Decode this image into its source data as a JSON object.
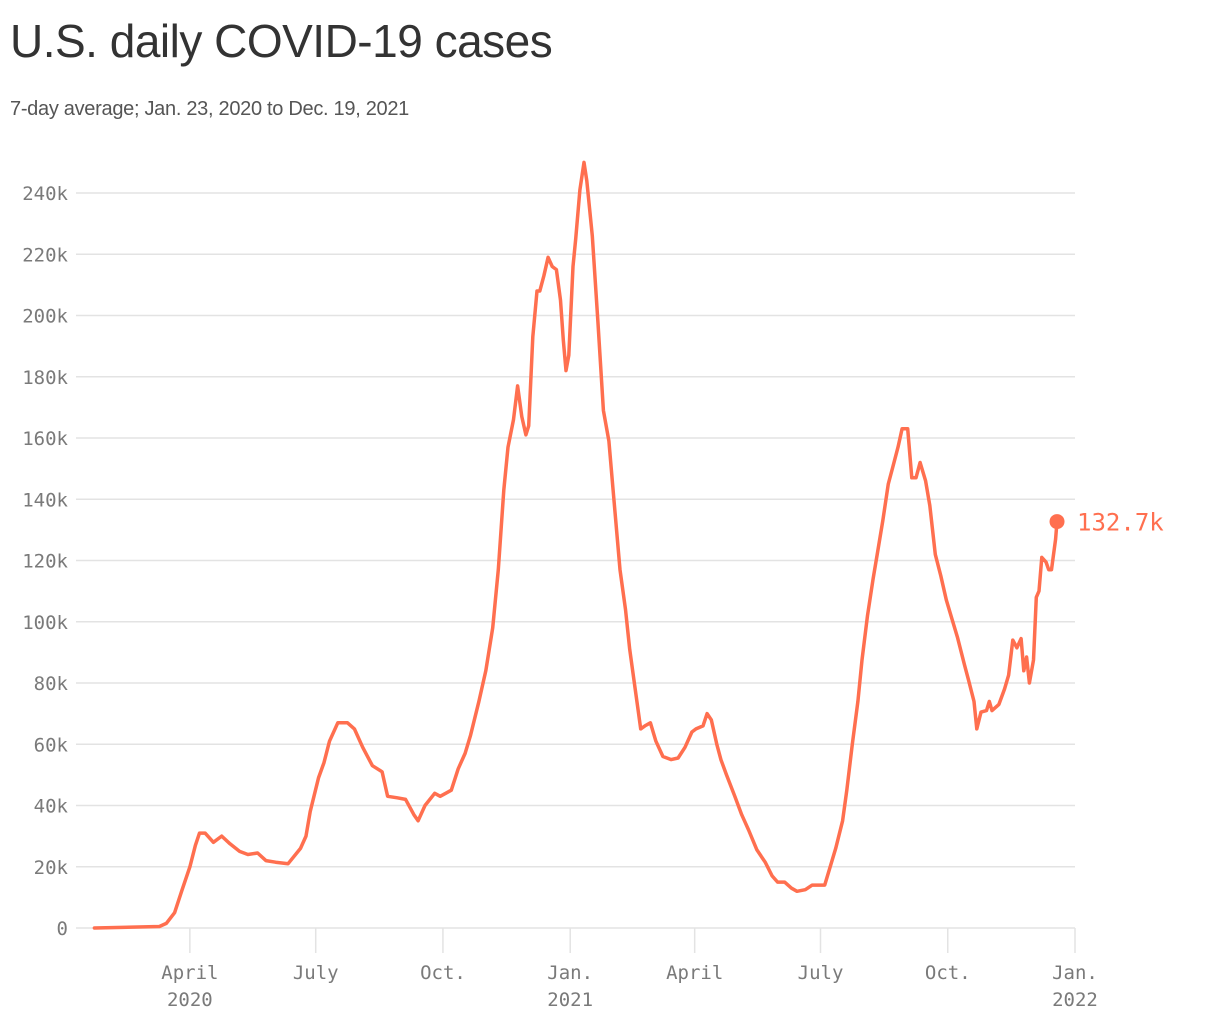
{
  "header": {
    "title": "U.S. daily COVID-19 cases",
    "subtitle": "7-day average; Jan. 23, 2020 to Dec. 19, 2021"
  },
  "colors": {
    "line": "#FF6F4F",
    "grid": "#e3e3e3",
    "axis_text": "#7a7a7a",
    "title": "#333333",
    "subtitle": "#555555"
  },
  "end_label": "132.7k",
  "chart_data": {
    "type": "line",
    "title": "U.S. daily COVID-19 cases",
    "subtitle": "7-day average; Jan. 23, 2020 to Dec. 19, 2021",
    "xlabel": "",
    "ylabel": "",
    "ylim": [
      0,
      240000
    ],
    "grid": true,
    "legend": "none",
    "yticks": [
      {
        "value": 0,
        "label": "0"
      },
      {
        "value": 20000,
        "label": "20k"
      },
      {
        "value": 40000,
        "label": "40k"
      },
      {
        "value": 60000,
        "label": "60k"
      },
      {
        "value": 80000,
        "label": "80k"
      },
      {
        "value": 100000,
        "label": "100k"
      },
      {
        "value": 120000,
        "label": "120k"
      },
      {
        "value": 140000,
        "label": "140k"
      },
      {
        "value": 160000,
        "label": "160k"
      },
      {
        "value": 180000,
        "label": "180k"
      },
      {
        "value": 200000,
        "label": "200k"
      },
      {
        "value": 220000,
        "label": "220k"
      },
      {
        "value": 240000,
        "label": "240k"
      }
    ],
    "xticks": [
      {
        "date": "2020-04-01",
        "label": "April",
        "sublabel": "2020"
      },
      {
        "date": "2020-07-01",
        "label": "July",
        "sublabel": ""
      },
      {
        "date": "2020-10-01",
        "label": "Oct.",
        "sublabel": ""
      },
      {
        "date": "2021-01-01",
        "label": "Jan.",
        "sublabel": "2021"
      },
      {
        "date": "2021-04-01",
        "label": "April",
        "sublabel": ""
      },
      {
        "date": "2021-07-01",
        "label": "July",
        "sublabel": ""
      },
      {
        "date": "2021-10-01",
        "label": "Oct.",
        "sublabel": ""
      },
      {
        "date": "2022-01-01",
        "label": "Jan.",
        "sublabel": "2022"
      }
    ],
    "xrange": [
      "2020-01-01",
      "2022-01-01"
    ],
    "series": [
      {
        "name": "7-day average daily cases",
        "end_annotation": "132.7k",
        "points": [
          [
            "2020-01-23",
            0
          ],
          [
            "2020-03-10",
            500
          ],
          [
            "2020-03-15",
            1500
          ],
          [
            "2020-03-21",
            5000
          ],
          [
            "2020-03-26",
            12000
          ],
          [
            "2020-04-01",
            20000
          ],
          [
            "2020-04-05",
            27000
          ],
          [
            "2020-04-08",
            31000
          ],
          [
            "2020-04-12",
            31000
          ],
          [
            "2020-04-18",
            28000
          ],
          [
            "2020-04-24",
            30000
          ],
          [
            "2020-04-30",
            27500
          ],
          [
            "2020-05-07",
            25000
          ],
          [
            "2020-05-13",
            24000
          ],
          [
            "2020-05-20",
            24500
          ],
          [
            "2020-05-26",
            22000
          ],
          [
            "2020-06-02",
            21500
          ],
          [
            "2020-06-11",
            21000
          ],
          [
            "2020-06-20",
            26000
          ],
          [
            "2020-06-24",
            30000
          ],
          [
            "2020-06-27",
            38000
          ],
          [
            "2020-07-03",
            49000
          ],
          [
            "2020-07-07",
            54000
          ],
          [
            "2020-07-11",
            61000
          ],
          [
            "2020-07-17",
            67000
          ],
          [
            "2020-07-24",
            67000
          ],
          [
            "2020-07-29",
            65000
          ],
          [
            "2020-08-04",
            59000
          ],
          [
            "2020-08-11",
            53000
          ],
          [
            "2020-08-18",
            51000
          ],
          [
            "2020-08-22",
            43000
          ],
          [
            "2020-08-29",
            42500
          ],
          [
            "2020-09-04",
            42000
          ],
          [
            "2020-09-10",
            37000
          ],
          [
            "2020-09-13",
            35000
          ],
          [
            "2020-09-18",
            40000
          ],
          [
            "2020-09-25",
            44000
          ],
          [
            "2020-09-29",
            43000
          ],
          [
            "2020-10-03",
            44000
          ],
          [
            "2020-10-07",
            45000
          ],
          [
            "2020-10-12",
            52000
          ],
          [
            "2020-10-17",
            57000
          ],
          [
            "2020-10-21",
            63000
          ],
          [
            "2020-10-27",
            74000
          ],
          [
            "2020-11-01",
            84000
          ],
          [
            "2020-11-06",
            98000
          ],
          [
            "2020-11-10",
            117000
          ],
          [
            "2020-11-14",
            143000
          ],
          [
            "2020-11-17",
            157000
          ],
          [
            "2020-11-21",
            166000
          ],
          [
            "2020-11-24",
            177000
          ],
          [
            "2020-11-27",
            167000
          ],
          [
            "2020-11-30",
            161000
          ],
          [
            "2020-12-02",
            164000
          ],
          [
            "2020-12-05",
            193000
          ],
          [
            "2020-12-08",
            208000
          ],
          [
            "2020-12-10",
            208000
          ],
          [
            "2020-12-13",
            213000
          ],
          [
            "2020-12-16",
            219000
          ],
          [
            "2020-12-19",
            216000
          ],
          [
            "2020-12-22",
            215000
          ],
          [
            "2020-12-25",
            205000
          ],
          [
            "2020-12-27",
            192000
          ],
          [
            "2020-12-29",
            182000
          ],
          [
            "2020-12-31",
            187000
          ],
          [
            "2021-01-03",
            216000
          ],
          [
            "2021-01-05",
            225000
          ],
          [
            "2021-01-08",
            241000
          ],
          [
            "2021-01-11",
            250000
          ],
          [
            "2021-01-13",
            244000
          ],
          [
            "2021-01-17",
            226000
          ],
          [
            "2021-01-21",
            198000
          ],
          [
            "2021-01-25",
            169000
          ],
          [
            "2021-01-29",
            159000
          ],
          [
            "2021-02-01",
            143000
          ],
          [
            "2021-02-06",
            117000
          ],
          [
            "2021-02-10",
            104000
          ],
          [
            "2021-02-13",
            91000
          ],
          [
            "2021-02-17",
            78000
          ],
          [
            "2021-02-21",
            65000
          ],
          [
            "2021-02-24",
            66000
          ],
          [
            "2021-02-28",
            67000
          ],
          [
            "2021-03-04",
            61000
          ],
          [
            "2021-03-09",
            56000
          ],
          [
            "2021-03-15",
            55000
          ],
          [
            "2021-03-20",
            55500
          ],
          [
            "2021-03-25",
            59000
          ],
          [
            "2021-03-30",
            64000
          ],
          [
            "2021-04-02",
            65000
          ],
          [
            "2021-04-07",
            66000
          ],
          [
            "2021-04-10",
            70000
          ],
          [
            "2021-04-13",
            68000
          ],
          [
            "2021-04-17",
            60000
          ],
          [
            "2021-04-20",
            55000
          ],
          [
            "2021-04-24",
            50000
          ],
          [
            "2021-04-30",
            43000
          ],
          [
            "2021-05-05",
            37000
          ],
          [
            "2021-05-10",
            32000
          ],
          [
            "2021-05-16",
            25500
          ],
          [
            "2021-05-22",
            21500
          ],
          [
            "2021-05-27",
            17000
          ],
          [
            "2021-05-31",
            15000
          ],
          [
            "2021-06-05",
            15000
          ],
          [
            "2021-06-10",
            13000
          ],
          [
            "2021-06-14",
            12000
          ],
          [
            "2021-06-20",
            12500
          ],
          [
            "2021-06-25",
            14000
          ],
          [
            "2021-06-30",
            14000
          ],
          [
            "2021-07-04",
            14000
          ],
          [
            "2021-07-08",
            20000
          ],
          [
            "2021-07-12",
            26000
          ],
          [
            "2021-07-17",
            35000
          ],
          [
            "2021-07-20",
            45000
          ],
          [
            "2021-07-24",
            60000
          ],
          [
            "2021-07-28",
            74000
          ],
          [
            "2021-07-31",
            87500
          ],
          [
            "2021-08-04",
            102000
          ],
          [
            "2021-08-08",
            114000
          ],
          [
            "2021-08-11",
            122000
          ],
          [
            "2021-08-15",
            133000
          ],
          [
            "2021-08-19",
            145000
          ],
          [
            "2021-08-22",
            150000
          ],
          [
            "2021-08-26",
            157000
          ],
          [
            "2021-08-29",
            163000
          ],
          [
            "2021-09-02",
            163000
          ],
          [
            "2021-09-05",
            147000
          ],
          [
            "2021-09-08",
            147000
          ],
          [
            "2021-09-11",
            152000
          ],
          [
            "2021-09-15",
            146000
          ],
          [
            "2021-09-18",
            138000
          ],
          [
            "2021-09-22",
            122000
          ],
          [
            "2021-09-26",
            115000
          ],
          [
            "2021-09-30",
            107000
          ],
          [
            "2021-10-04",
            101000
          ],
          [
            "2021-10-08",
            95000
          ],
          [
            "2021-10-13",
            86000
          ],
          [
            "2021-10-16",
            81000
          ],
          [
            "2021-10-20",
            74000
          ],
          [
            "2021-10-22",
            65000
          ],
          [
            "2021-10-25",
            70500
          ],
          [
            "2021-10-29",
            71000
          ],
          [
            "2021-10-31",
            74000
          ],
          [
            "2021-11-02",
            71000
          ],
          [
            "2021-11-07",
            73000
          ],
          [
            "2021-11-11",
            78000
          ],
          [
            "2021-11-14",
            82500
          ],
          [
            "2021-11-17",
            94000
          ],
          [
            "2021-11-20",
            91500
          ],
          [
            "2021-11-23",
            94500
          ],
          [
            "2021-11-25",
            84000
          ],
          [
            "2021-11-27",
            88500
          ],
          [
            "2021-11-29",
            80000
          ],
          [
            "2021-12-02",
            87500
          ],
          [
            "2021-12-04",
            108000
          ],
          [
            "2021-12-06",
            110000
          ],
          [
            "2021-12-08",
            121000
          ],
          [
            "2021-12-11",
            119500
          ],
          [
            "2021-12-13",
            117000
          ],
          [
            "2021-12-15",
            117000
          ],
          [
            "2021-12-18",
            127000
          ],
          [
            "2021-12-19",
            132700
          ]
        ]
      }
    ]
  }
}
